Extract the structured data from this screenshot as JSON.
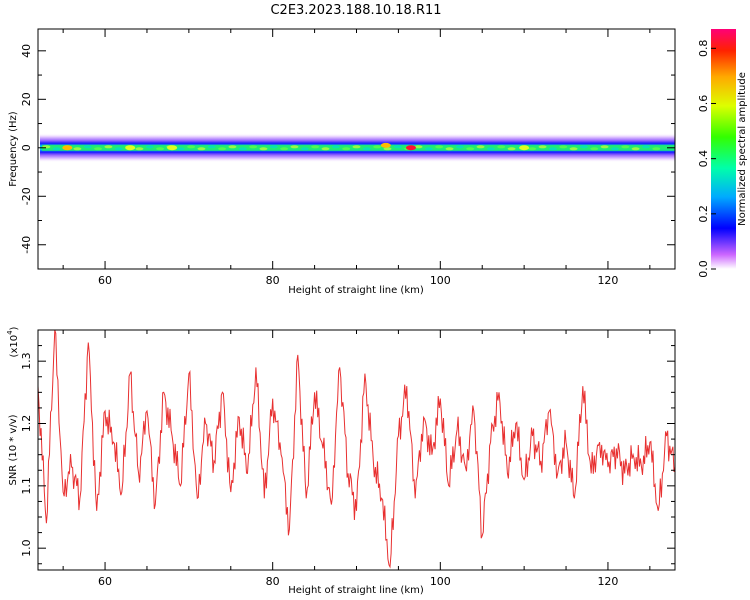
{
  "title": "C2E3.2023.188.10.18.R11",
  "chart_data": [
    {
      "type": "heatmap",
      "xlabel": "Height of straight line (km)",
      "ylabel": "Frequency (Hz)",
      "xlim": [
        52,
        128
      ],
      "ylim": [
        -50,
        49
      ],
      "x_ticks": [
        60,
        80,
        100,
        120
      ],
      "y_ticks": [
        40,
        20,
        0,
        -20,
        -40
      ],
      "colorbar": {
        "label": "Normalized spectral amplitude",
        "range": [
          0.0,
          0.87
        ],
        "ticks": [
          0.0,
          0.2,
          0.4,
          0.6,
          0.8
        ]
      },
      "band": {
        "center_hz": 0,
        "halfwidth_hz": [
          4,
          5
        ],
        "hotspots": [
          {
            "x": 93.5,
            "y": 1,
            "amp": 0.7
          },
          {
            "x": 96.5,
            "y": 0,
            "amp": 0.87
          },
          {
            "x": 55.5,
            "y": 0,
            "amp": 0.72
          },
          {
            "x": 63,
            "y": 0,
            "amp": 0.6
          },
          {
            "x": 68,
            "y": 0,
            "amp": 0.62
          },
          {
            "x": 110,
            "y": 0,
            "amp": 0.58
          }
        ]
      }
    },
    {
      "type": "line",
      "xlabel": "Height of straight line (km)",
      "ylabel": "SNR (10 * v/v)",
      "exponent_label": "(x10",
      "exponent_power": "4",
      "xlim": [
        52,
        128
      ],
      "ylim": [
        0.965,
        1.35
      ],
      "x_ticks": [
        60,
        80,
        100,
        120
      ],
      "y_ticks": [
        1.0,
        1.1,
        1.2,
        1.3
      ],
      "series": [
        {
          "color": "#e83030",
          "x": [
            52,
            53,
            54,
            55,
            56,
            57,
            58,
            59,
            60,
            61,
            62,
            63,
            64,
            65,
            66,
            67,
            68,
            69,
            70,
            71,
            72,
            73,
            74,
            75,
            76,
            77,
            78,
            79,
            80,
            81,
            82,
            83,
            84,
            85,
            86,
            87,
            88,
            89,
            90,
            91,
            92,
            93,
            94,
            95,
            96,
            97,
            98,
            99,
            100,
            101,
            102,
            103,
            104,
            105,
            106,
            107,
            108,
            109,
            110,
            111,
            112,
            113,
            114,
            115,
            116,
            117,
            118,
            119,
            120,
            121,
            122,
            123,
            124,
            125,
            126,
            127,
            128
          ],
          "values": [
            1.26,
            1.04,
            1.35,
            1.09,
            1.13,
            1.08,
            1.33,
            1.06,
            1.22,
            1.17,
            1.09,
            1.28,
            1.12,
            1.22,
            1.07,
            1.25,
            1.18,
            1.1,
            1.28,
            1.08,
            1.2,
            1.14,
            1.25,
            1.09,
            1.21,
            1.12,
            1.29,
            1.08,
            1.24,
            1.15,
            1.03,
            1.31,
            1.08,
            1.25,
            1.16,
            1.07,
            1.29,
            1.12,
            1.06,
            1.28,
            1.14,
            1.08,
            0.97,
            1.18,
            1.26,
            1.08,
            1.21,
            1.15,
            1.24,
            1.1,
            1.19,
            1.13,
            1.22,
            1.02,
            1.17,
            1.25,
            1.12,
            1.2,
            1.11,
            1.18,
            1.14,
            1.22,
            1.12,
            1.17,
            1.08,
            1.26,
            1.12,
            1.17,
            1.13,
            1.16,
            1.12,
            1.15,
            1.13,
            1.17,
            1.06,
            1.18,
            1.13
          ]
        }
      ]
    }
  ]
}
